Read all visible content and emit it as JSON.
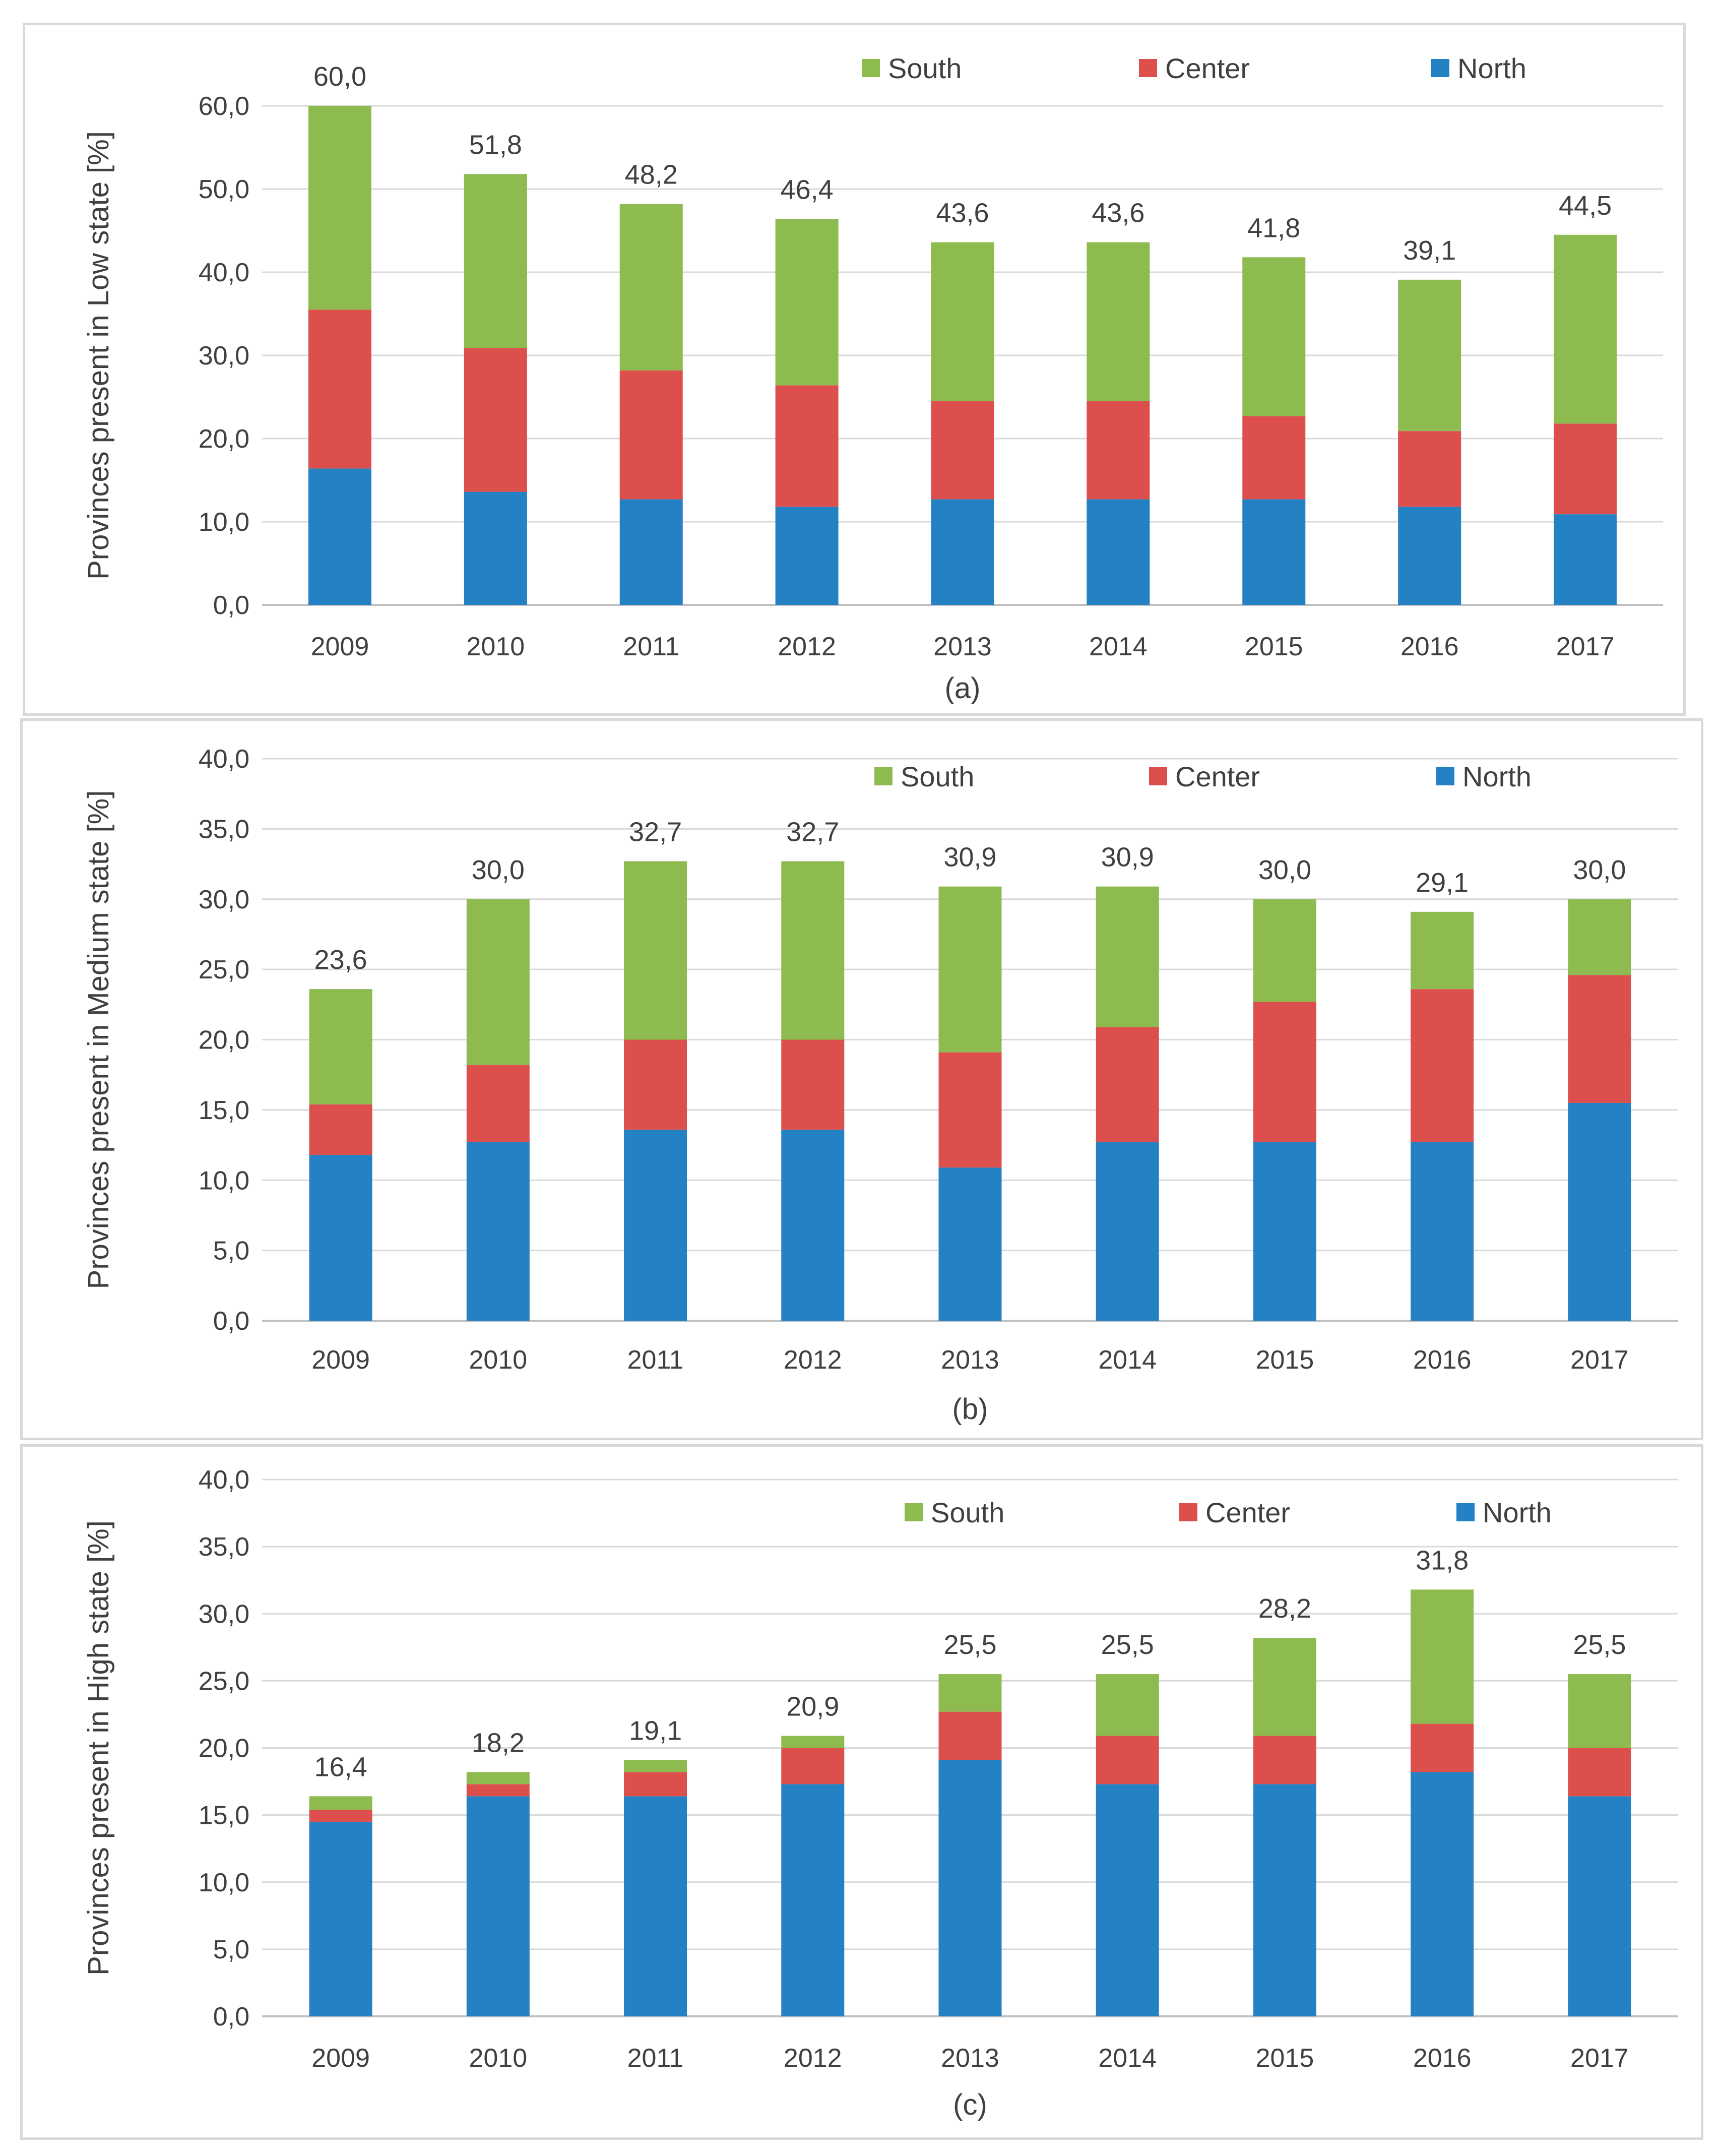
{
  "series_names": [
    "North",
    "Center",
    "South"
  ],
  "colors": {
    "North": "#2481c3",
    "Center": "#dc4f4d",
    "South": "#8dbb4f"
  },
  "chart_data": [
    {
      "type": "bar",
      "stacked": true,
      "title": "",
      "subplot_label": "(a)",
      "xlabel": "",
      "ylabel": "Provinces present in Low state [%]",
      "ylim": [
        0,
        60
      ],
      "yticks": [
        "0,0",
        "10,0",
        "20,0",
        "30,0",
        "40,0",
        "50,0",
        "60,0"
      ],
      "categories": [
        "2009",
        "2010",
        "2011",
        "2012",
        "2013",
        "2014",
        "2015",
        "2016",
        "2017"
      ],
      "series": [
        {
          "name": "North",
          "values": [
            16.4,
            13.6,
            12.7,
            11.8,
            12.7,
            12.7,
            12.7,
            11.8,
            10.9
          ]
        },
        {
          "name": "Center",
          "values": [
            19.1,
            17.3,
            15.5,
            14.6,
            11.8,
            11.8,
            10.0,
            9.1,
            10.9
          ]
        },
        {
          "name": "South",
          "values": [
            24.5,
            20.9,
            20.0,
            20.0,
            19.1,
            19.1,
            19.1,
            18.2,
            22.7
          ]
        }
      ],
      "totals": [
        "60,0",
        "51,8",
        "48,2",
        "46,4",
        "43,6",
        "43,6",
        "41,8",
        "39,1",
        "44,5"
      ],
      "legend": "top-right"
    },
    {
      "type": "bar",
      "stacked": true,
      "title": "",
      "subplot_label": "(b)",
      "xlabel": "",
      "ylabel": "Provinces present in Medium state [%]",
      "ylim": [
        0,
        40
      ],
      "yticks": [
        "0,0",
        "5,0",
        "10,0",
        "15,0",
        "20,0",
        "25,0",
        "30,0",
        "35,0",
        "40,0"
      ],
      "categories": [
        "2009",
        "2010",
        "2011",
        "2012",
        "2013",
        "2014",
        "2015",
        "2016",
        "2017"
      ],
      "series": [
        {
          "name": "North",
          "values": [
            11.8,
            12.7,
            13.6,
            13.6,
            10.9,
            12.7,
            12.7,
            12.7,
            15.5
          ]
        },
        {
          "name": "Center",
          "values": [
            3.6,
            5.5,
            6.4,
            6.4,
            8.2,
            8.2,
            10.0,
            10.9,
            9.1
          ]
        },
        {
          "name": "South",
          "values": [
            8.2,
            11.8,
            12.7,
            12.7,
            11.8,
            10.0,
            7.3,
            5.5,
            5.4
          ]
        }
      ],
      "totals": [
        "23,6",
        "30,0",
        "32,7",
        "32,7",
        "30,9",
        "30,9",
        "30,0",
        "29,1",
        "30,0"
      ],
      "legend": "top-right"
    },
    {
      "type": "bar",
      "stacked": true,
      "title": "",
      "subplot_label": "(c)",
      "xlabel": "",
      "ylabel": "Provinces present in High state [%]",
      "ylim": [
        0,
        40
      ],
      "yticks": [
        "0,0",
        "5,0",
        "10,0",
        "15,0",
        "20,0",
        "25,0",
        "30,0",
        "35,0",
        "40,0"
      ],
      "categories": [
        "2009",
        "2010",
        "2011",
        "2012",
        "2013",
        "2014",
        "2015",
        "2016",
        "2017"
      ],
      "series": [
        {
          "name": "North",
          "values": [
            14.5,
            16.4,
            16.4,
            17.3,
            19.1,
            17.3,
            17.3,
            18.2,
            16.4
          ]
        },
        {
          "name": "Center",
          "values": [
            0.9,
            0.9,
            1.8,
            2.7,
            3.6,
            3.6,
            3.6,
            3.6,
            3.6
          ]
        },
        {
          "name": "South",
          "values": [
            1.0,
            0.9,
            0.9,
            0.9,
            2.8,
            4.6,
            7.3,
            10.0,
            5.5
          ]
        }
      ],
      "totals": [
        "16,4",
        "18,2",
        "19,1",
        "20,9",
        "25,5",
        "25,5",
        "28,2",
        "31,8",
        "25,5"
      ],
      "legend": "top-right"
    }
  ]
}
